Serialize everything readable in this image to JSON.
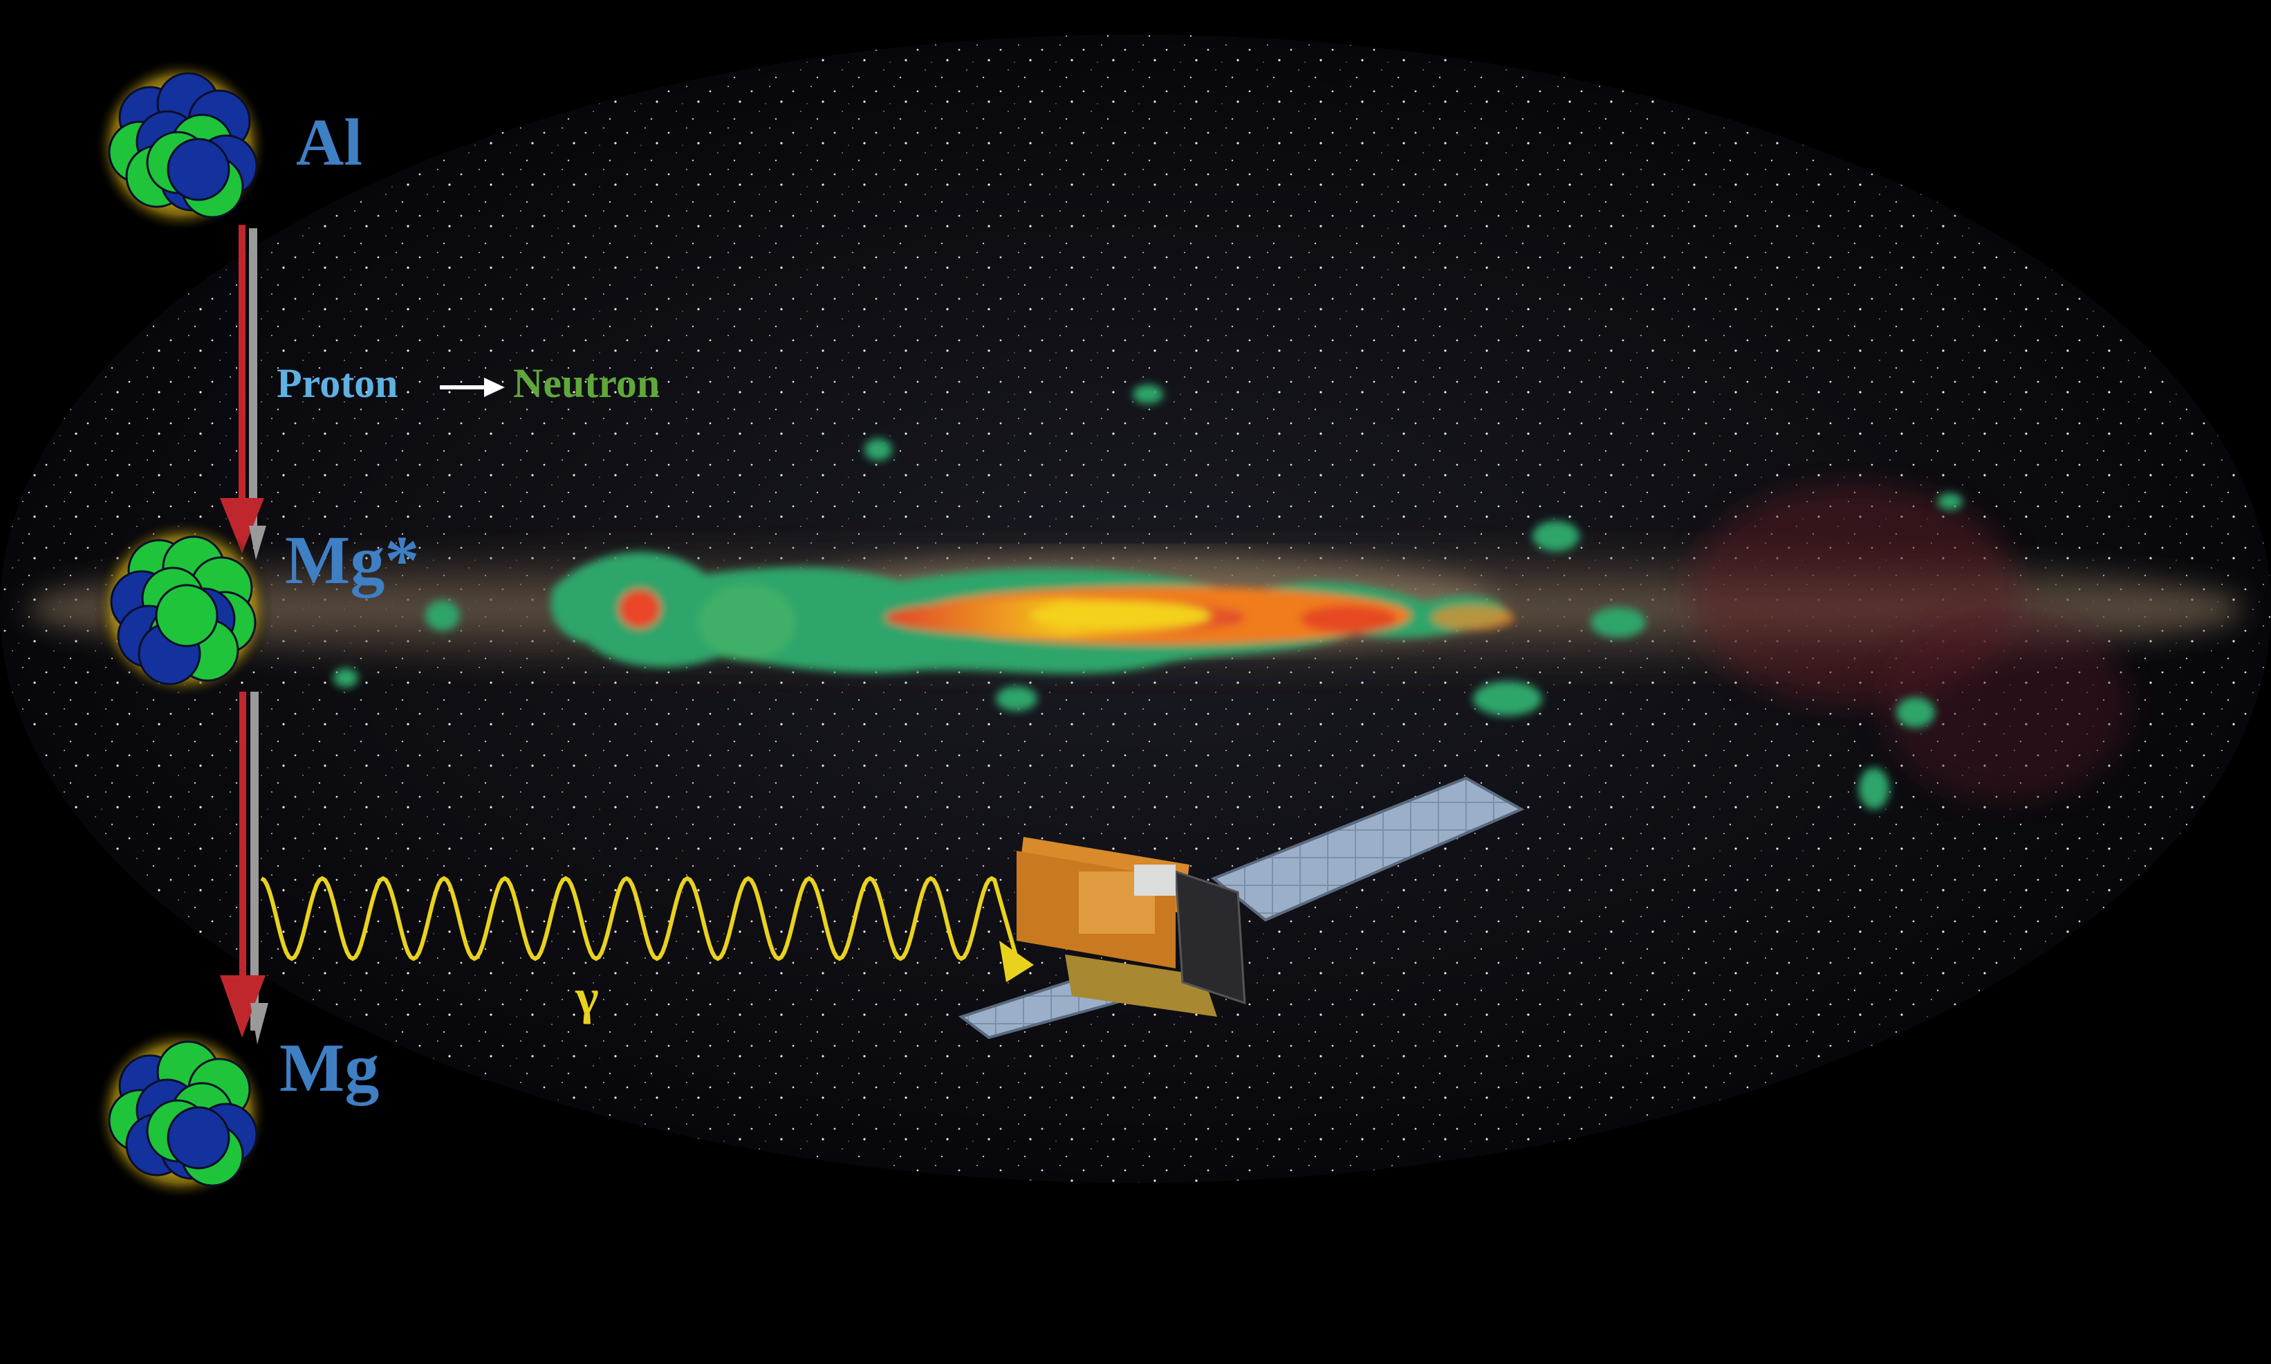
{
  "labels": {
    "al": "Al",
    "mg_excited": "Mg*",
    "mg": "Mg",
    "proton": "Proton",
    "neutron": "Neutron",
    "gamma": "γ"
  },
  "colors": {
    "background": "#000000",
    "label_blue": "#3f7fc4",
    "proton_cyan": "#5fb1e2",
    "neutron_green": "#5fa83a",
    "gamma_yellow": "#e9d21e",
    "decay_arrow_red": "#c0272d",
    "nucleon_blue": "#14329e",
    "nucleon_green": "#1fc43a"
  },
  "elements": {
    "sky_map": "milky-way-all-sky-ellipse",
    "emission_map": "aluminum-26-gamma-ray-emission-map",
    "satellite": "integral-satellite-illustration"
  }
}
